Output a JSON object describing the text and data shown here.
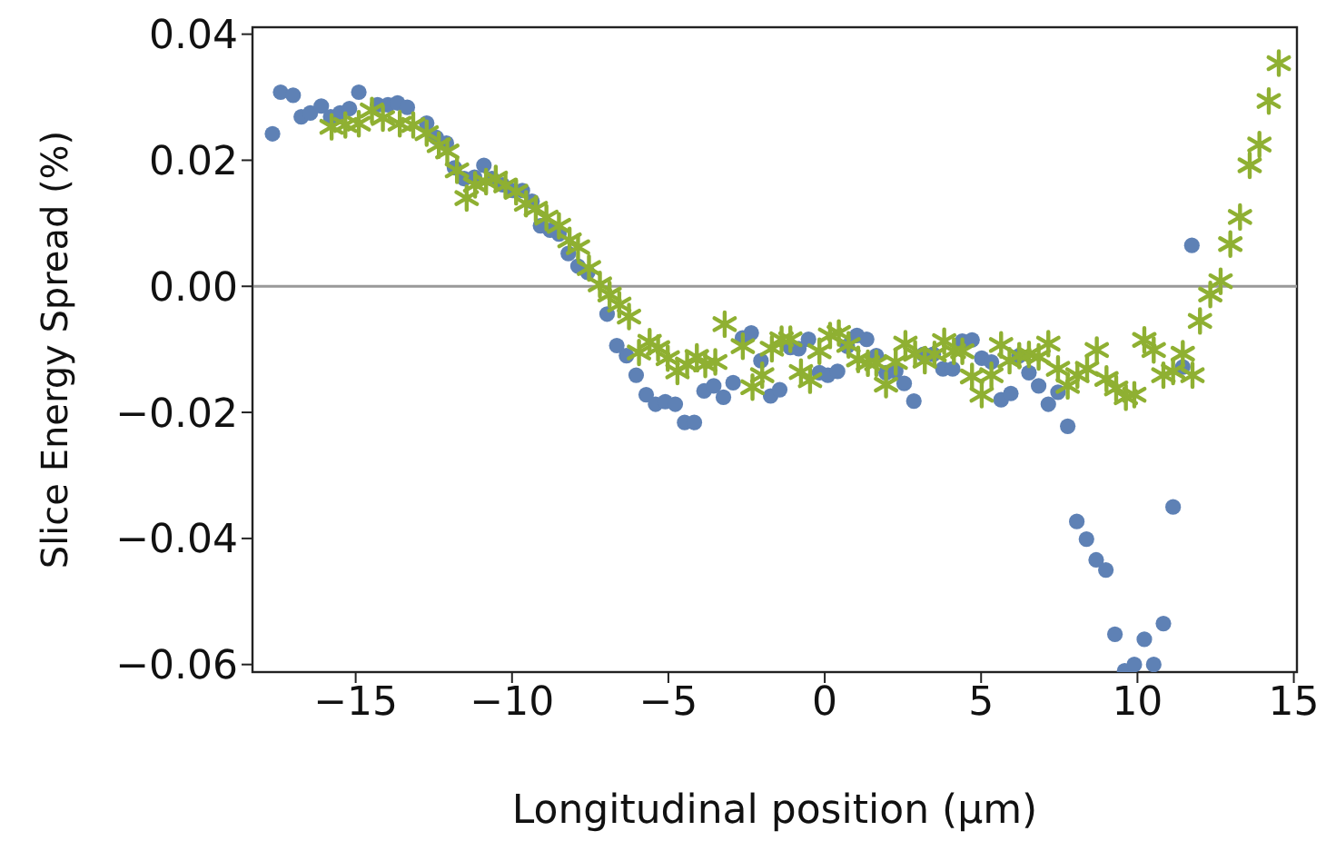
{
  "chart_data": {
    "type": "scatter",
    "xlabel": "Longitudinal position (μm)",
    "ylabel": "Slice Energy Spread (%)",
    "xlim": [
      -18.3,
      15.1
    ],
    "ylim": [
      -0.0612,
      0.0411
    ],
    "xticks": [
      {
        "value": -15,
        "label": "−15"
      },
      {
        "value": -10,
        "label": "−10"
      },
      {
        "value": -5,
        "label": "−5"
      },
      0,
      5,
      10,
      15
    ],
    "yticks": [
      {
        "value": -0.06,
        "label": "−0.06"
      },
      {
        "value": -0.04,
        "label": "−0.04"
      },
      {
        "value": -0.02,
        "label": "−0.02"
      },
      {
        "value": 0,
        "label": "0.00"
      },
      {
        "value": 0.02,
        "label": "0.02"
      },
      {
        "value": 0.04,
        "label": "0.04"
      }
    ],
    "grid": false,
    "ref_lines": [
      {
        "axis": "y",
        "value": 0,
        "color": "#999999"
      }
    ],
    "series": [
      {
        "color": "#5e81b5",
        "marker": "circle",
        "x": [
          -17.66,
          -17.4,
          -17.0,
          -16.74,
          -16.45,
          -16.1,
          -15.8,
          -15.5,
          -15.2,
          -14.9,
          -14.3,
          -13.97,
          -13.66,
          -13.35,
          -12.73,
          -12.42,
          -12.1,
          -11.84,
          -11.53,
          -11.2,
          -10.9,
          -10.64,
          -10.3,
          -9.98,
          -9.67,
          -9.36,
          -9.09,
          -8.78,
          -8.5,
          -8.2,
          -7.89,
          -7.58,
          -6.96,
          -6.65,
          -6.34,
          -6.03,
          -5.71,
          -5.41,
          -5.1,
          -4.78,
          -4.48,
          -4.17,
          -3.86,
          -3.55,
          -3.24,
          -2.93,
          -2.63,
          -2.35,
          -2.04,
          -1.73,
          -1.44,
          -1.1,
          -0.83,
          -0.52,
          -0.17,
          0.1,
          0.41,
          0.72,
          1.03,
          1.34,
          1.65,
          1.96,
          2.27,
          2.54,
          2.85,
          3.16,
          3.47,
          3.78,
          4.09,
          4.4,
          4.71,
          5.02,
          5.33,
          5.64,
          5.95,
          6.22,
          6.53,
          6.84,
          7.15,
          7.46,
          7.77,
          8.06,
          8.37,
          8.68,
          8.99,
          9.28,
          9.59,
          9.9,
          10.22,
          10.52,
          10.83,
          11.14,
          11.45,
          11.74
        ],
        "values": [
          0.0242,
          0.0308,
          0.0303,
          0.0269,
          0.0275,
          0.0286,
          0.0269,
          0.0275,
          0.0282,
          0.0308,
          0.0288,
          0.0288,
          0.0291,
          0.0284,
          0.0259,
          0.0236,
          0.0227,
          0.0188,
          0.0171,
          0.0173,
          0.0192,
          0.0171,
          0.0161,
          0.0152,
          0.0152,
          0.0135,
          0.0096,
          0.0089,
          0.0083,
          0.0052,
          0.0032,
          0.0022,
          -0.0044,
          -0.0094,
          -0.011,
          -0.0141,
          -0.0172,
          -0.0187,
          -0.0183,
          -0.0187,
          -0.0216,
          -0.0216,
          -0.0166,
          -0.0158,
          -0.0176,
          -0.0153,
          -0.0082,
          -0.0074,
          -0.0118,
          -0.0174,
          -0.0164,
          -0.0097,
          -0.0099,
          -0.0084,
          -0.0137,
          -0.0141,
          -0.0135,
          -0.0095,
          -0.0078,
          -0.0084,
          -0.011,
          -0.0137,
          -0.0135,
          -0.0154,
          -0.0182,
          -0.0108,
          -0.0108,
          -0.0131,
          -0.0131,
          -0.0087,
          -0.0085,
          -0.0114,
          -0.012,
          -0.018,
          -0.017,
          -0.011,
          -0.0137,
          -0.0158,
          -0.0187,
          -0.0168,
          -0.0222,
          -0.0373,
          -0.0401,
          -0.0434,
          -0.045,
          -0.0552,
          -0.061,
          -0.06,
          -0.056,
          -0.06,
          -0.0535,
          -0.035,
          -0.0128,
          0.0065
        ]
      },
      {
        "color": "#8fb032",
        "marker": "cross",
        "x": [
          -15.77,
          -15.33,
          -14.9,
          -14.48,
          -14.13,
          -13.59,
          -13.16,
          -12.73,
          -12.34,
          -12.07,
          -11.76,
          -11.45,
          -11.18,
          -10.83,
          -10.52,
          -10.21,
          -9.87,
          -9.55,
          -9.24,
          -8.9,
          -8.5,
          -8.16,
          -7.89,
          -7.54,
          -7.19,
          -6.88,
          -6.57,
          -6.26,
          -5.94,
          -5.6,
          -5.33,
          -5.02,
          -4.71,
          -4.4,
          -4.09,
          -3.82,
          -3.5,
          -3.2,
          -2.62,
          -2.31,
          -2.0,
          -1.69,
          -1.38,
          -1.1,
          -0.76,
          -0.47,
          -0.17,
          0.17,
          0.45,
          0.76,
          1.07,
          1.38,
          1.65,
          1.96,
          2.27,
          2.58,
          2.89,
          3.2,
          3.51,
          3.82,
          4.13,
          4.4,
          4.71,
          5.02,
          5.33,
          5.64,
          5.91,
          6.22,
          6.53,
          6.84,
          7.15,
          7.46,
          7.77,
          8.08,
          8.39,
          8.7,
          9.01,
          9.32,
          9.63,
          9.9,
          10.22,
          10.52,
          10.83,
          11.14,
          11.45,
          11.76,
          12.0,
          12.33,
          12.66,
          12.97,
          13.28,
          13.59,
          13.9,
          14.2,
          14.52
        ],
        "values": [
          0.0253,
          0.0256,
          0.0258,
          0.0279,
          0.0267,
          0.0258,
          0.0256,
          0.0243,
          0.0224,
          0.0214,
          0.0184,
          0.014,
          0.0161,
          0.0166,
          0.0171,
          0.016,
          0.015,
          0.0131,
          0.0123,
          0.0109,
          0.0096,
          0.0073,
          0.0062,
          0.0029,
          0.0003,
          -0.0013,
          -0.0029,
          -0.0048,
          -0.0105,
          -0.0088,
          -0.0098,
          -0.0114,
          -0.0135,
          -0.0124,
          -0.0112,
          -0.0124,
          -0.012,
          -0.006,
          -0.0095,
          -0.016,
          -0.0141,
          -0.0099,
          -0.0084,
          -0.0084,
          -0.0136,
          -0.0149,
          -0.0103,
          -0.0078,
          -0.0074,
          -0.0093,
          -0.0116,
          -0.0122,
          -0.0122,
          -0.0156,
          -0.012,
          -0.0091,
          -0.0107,
          -0.0118,
          -0.0108,
          -0.0087,
          -0.0103,
          -0.0103,
          -0.0143,
          -0.0172,
          -0.0141,
          -0.0093,
          -0.0118,
          -0.011,
          -0.0108,
          -0.0112,
          -0.0091,
          -0.0131,
          -0.0158,
          -0.0141,
          -0.0131,
          -0.0101,
          -0.0147,
          -0.0162,
          -0.0176,
          -0.0172,
          -0.0085,
          -0.0101,
          -0.0141,
          -0.0135,
          -0.0107,
          -0.0141,
          -0.0055,
          -0.0013,
          0.0008,
          0.0067,
          0.011,
          0.0192,
          0.0225,
          0.0294,
          0.0354
        ]
      }
    ]
  }
}
